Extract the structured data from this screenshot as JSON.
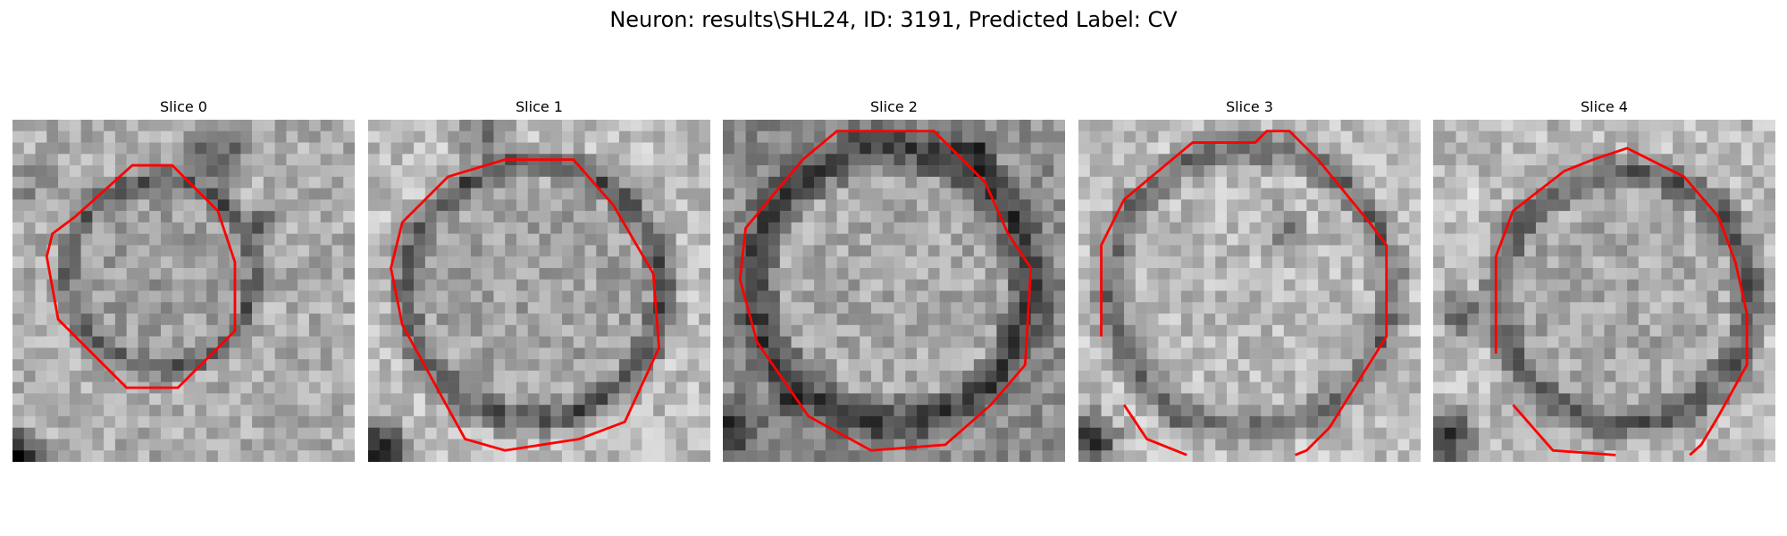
{
  "figure": {
    "title": "Neuron: results\\SHL24, ID: 3191, Predicted Label: CV"
  },
  "panels": [
    {
      "title": "Slice 0"
    },
    {
      "title": "Slice 1"
    },
    {
      "title": "Slice 2"
    },
    {
      "title": "Slice 3"
    },
    {
      "title": "Slice 4"
    }
  ],
  "colors": {
    "contour": "#ff0000",
    "background": "#ffffff"
  }
}
